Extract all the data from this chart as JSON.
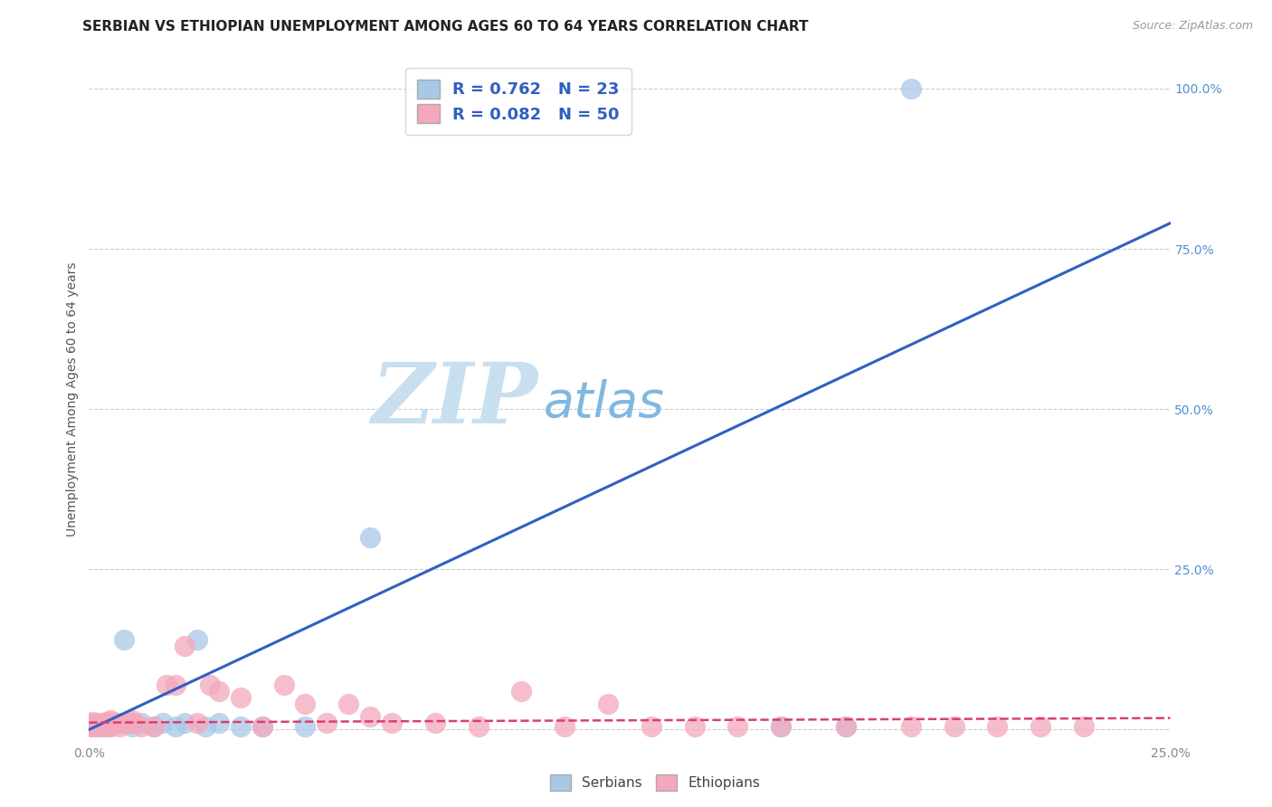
{
  "title": "SERBIAN VS ETHIOPIAN UNEMPLOYMENT AMONG AGES 60 TO 64 YEARS CORRELATION CHART",
  "source": "Source: ZipAtlas.com",
  "ylabel": "Unemployment Among Ages 60 to 64 years",
  "xlim": [
    0.0,
    0.25
  ],
  "ylim": [
    -0.02,
    1.05
  ],
  "x_ticks": [
    0.0,
    0.05,
    0.1,
    0.15,
    0.2,
    0.25
  ],
  "y_ticks": [
    0.0,
    0.25,
    0.5,
    0.75,
    1.0
  ],
  "serbian_color": "#a8c8e8",
  "ethiopian_color": "#f4a8bc",
  "serbian_line_color": "#3060c0",
  "ethiopian_line_color": "#d84070",
  "watermark_zip": "ZIP",
  "watermark_atlas": "atlas",
  "R_serbian": 0.762,
  "N_serbian": 23,
  "R_ethiopian": 0.082,
  "N_ethiopian": 50,
  "serbian_x": [
    0.0,
    0.002,
    0.003,
    0.005,
    0.007,
    0.008,
    0.01,
    0.01,
    0.012,
    0.015,
    0.017,
    0.02,
    0.022,
    0.025,
    0.027,
    0.03,
    0.035,
    0.04,
    0.05,
    0.065,
    0.16,
    0.175,
    0.19
  ],
  "serbian_y": [
    0.005,
    0.005,
    0.005,
    0.01,
    0.01,
    0.14,
    0.01,
    0.005,
    0.01,
    0.005,
    0.01,
    0.005,
    0.01,
    0.14,
    0.005,
    0.01,
    0.005,
    0.005,
    0.005,
    0.3,
    0.005,
    0.005,
    1.0
  ],
  "ethiopian_x": [
    0.0,
    0.0,
    0.001,
    0.001,
    0.002,
    0.002,
    0.003,
    0.003,
    0.004,
    0.004,
    0.005,
    0.005,
    0.005,
    0.006,
    0.007,
    0.008,
    0.009,
    0.01,
    0.01,
    0.012,
    0.015,
    0.018,
    0.02,
    0.022,
    0.025,
    0.028,
    0.03,
    0.035,
    0.04,
    0.045,
    0.05,
    0.055,
    0.06,
    0.065,
    0.07,
    0.08,
    0.09,
    0.1,
    0.11,
    0.12,
    0.13,
    0.14,
    0.15,
    0.16,
    0.175,
    0.19,
    0.2,
    0.21,
    0.22,
    0.23
  ],
  "ethiopian_y": [
    0.005,
    0.01,
    0.005,
    0.012,
    0.005,
    0.01,
    0.005,
    0.01,
    0.005,
    0.012,
    0.005,
    0.01,
    0.015,
    0.01,
    0.005,
    0.01,
    0.01,
    0.01,
    0.015,
    0.005,
    0.005,
    0.07,
    0.07,
    0.13,
    0.01,
    0.07,
    0.06,
    0.05,
    0.005,
    0.07,
    0.04,
    0.01,
    0.04,
    0.02,
    0.01,
    0.01,
    0.005,
    0.06,
    0.005,
    0.04,
    0.005,
    0.005,
    0.005,
    0.005,
    0.005,
    0.005,
    0.005,
    0.005,
    0.005,
    0.005
  ],
  "serbian_trend": [
    0.0,
    0.79
  ],
  "ethiopian_trend": [
    0.011,
    0.018
  ],
  "grid_color": "#cccccc",
  "background_color": "#ffffff",
  "title_fontsize": 11,
  "axis_tick_fontsize": 10,
  "legend_fontsize": 13,
  "tick_label_color_y": "#5090d0",
  "tick_label_color_x": "#888888"
}
